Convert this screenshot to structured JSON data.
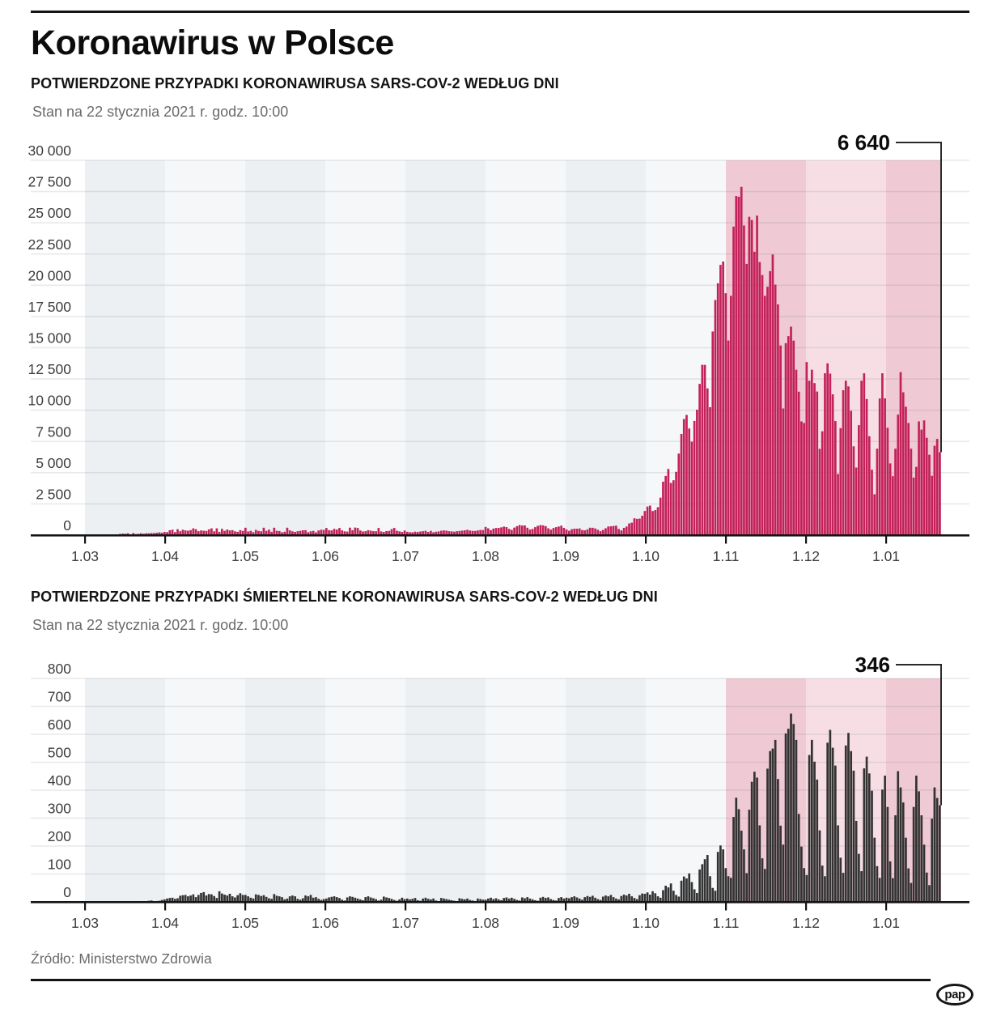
{
  "header": {
    "title": "Koronawirus w Polsce"
  },
  "footer": {
    "source": "Źródło: Ministerstwo Zdrowia",
    "logo_text": "pap"
  },
  "colors": {
    "cases_bar": "#c32159",
    "deaths_bar": "#333333",
    "band_gray": "#edf0f3",
    "band_light": "#f6f7f9",
    "band_pink_dark": "#efc9d4",
    "band_pink_light": "#f7dee5",
    "gridline": "rgba(120,132,144,0.18)",
    "axis": "#141414",
    "annotation_line": "#2a2a2a",
    "label_text": "#3d3d3d"
  },
  "chart_data": [
    {
      "type": "bar",
      "title": "POTWIERDZONE PRZYPADKI KORONAWIRUSA SARS-COV-2 WEDŁUG DNI",
      "subtitle": "Stan na 22 stycznia 2021 r. godz. 10:00",
      "granularity": "daily, 1.03.2020 - 22.01.2021",
      "annotation_last_value": "6 640",
      "ylim": [
        0,
        30000
      ],
      "y_tick_labels": [
        "30 000",
        "27 500",
        "25 000",
        "22 500",
        "20 000",
        "17 500",
        "15 000",
        "12 500",
        "10 000",
        "7 500",
        "5 000",
        "2 500",
        "0"
      ],
      "x_tick_labels": [
        "1.03",
        "1.04",
        "1.05",
        "1.06",
        "1.07",
        "1.08",
        "1.09",
        "1.10",
        "1.11",
        "1.12",
        "1.01"
      ],
      "highlight_from_label": "1.11",
      "bar_color": "#c32159",
      "legend_position": "none",
      "values": [
        1,
        1,
        5,
        6,
        22,
        16,
        39,
        46,
        37,
        43,
        61,
        49,
        68,
        103,
        125,
        119,
        152,
        68,
        168,
        91,
        111,
        152,
        115,
        155,
        150,
        168,
        170,
        193,
        224,
        196,
        256,
        243,
        392,
        437,
        244,
        475,
        311,
        435,
        380,
        357,
        401,
        545,
        475,
        318,
        380,
        354,
        336,
        461,
        545,
        306,
        545,
        263,
        504,
        342,
        452,
        381,
        401,
        306,
        263,
        399,
        342,
        593,
        295,
        345,
        235,
        425,
        340,
        307,
        595,
        345,
        442,
        270,
        595,
        350,
        330,
        225,
        272,
        595,
        383,
        305,
        259,
        315,
        344,
        388,
        399,
        235,
        305,
        340,
        225,
        371,
        435,
        416,
        575,
        399,
        380,
        506,
        450,
        576,
        379,
        305,
        283,
        599,
        396,
        607,
        576,
        375,
        295,
        316,
        397,
        360,
        319,
        314,
        576,
        295,
        256,
        325,
        340,
        480,
        576,
        355,
        305,
        260,
        371,
        266,
        239,
        231,
        279,
        257,
        293,
        314,
        349,
        257,
        344,
        234,
        277,
        295,
        353,
        380,
        360,
        316,
        300,
        279,
        316,
        336,
        361,
        389,
        426,
        370,
        341,
        335,
        377,
        415,
        409,
        658,
        548,
        399,
        526,
        572,
        580,
        624,
        686,
        645,
        500,
        420,
        602,
        718,
        809,
        769,
        776,
        595,
        449,
        497,
        640,
        749,
        803,
        786,
        719,
        551,
        441,
        570,
        641,
        691,
        758,
        583,
        455,
        350,
        475,
        519,
        515,
        538,
        410,
        385,
        463,
        594,
        590,
        534,
        432,
        316,
        419,
        554,
        690,
        711,
        736,
        758,
        497,
        377,
        582,
        691,
        936,
        1002,
        1350,
        1306,
        1326,
        1552,
        1934,
        2292,
        2367,
        1931,
        2006,
        2236,
        3003,
        4280,
        4739,
        5300,
        4178,
        4394,
        5068,
        6526,
        8099,
        9291,
        9622,
        8536,
        7482,
        9143,
        10040,
        12107,
        13632,
        13628,
        11742,
        10241,
        16300,
        18820,
        20156,
        21629,
        21897,
        19364,
        15578,
        19152,
        24692,
        27143,
        27086,
        27875,
        24785,
        21713,
        25484,
        25221,
        22683,
        25571,
        21854,
        20816,
        19152,
        19883,
        21130,
        22464,
        20051,
        18467,
        15178,
        10139,
        15362,
        15932,
        16687,
        15571,
        13240,
        11483,
        9105,
        8977,
        13855,
        12361,
        13239,
        12168,
        11497,
        6907,
        8312,
        12955,
        13749,
        12930,
        11267,
        9130,
        4896,
        8562,
        11599,
        12361,
        11903,
        9956,
        7109,
        5411,
        8805,
        12361,
        12955,
        10896,
        7914,
        5239,
        3271,
        6922,
        10936,
        12955,
        10947,
        8594,
        5742,
        4716,
        6919,
        9650,
        13045,
        11435,
        10278,
        8977,
        6919,
        4604,
        5466,
        9105,
        8449,
        9185,
        7795,
        6436,
        4748,
        7152,
        7705,
        6640
      ]
    },
    {
      "type": "bar",
      "title": "POTWIERDZONE PRZYPADKI ŚMIERTELNE KORONAWIRUSA SARS-COV-2 WEDŁUG DNI",
      "subtitle": "Stan na 22 stycznia 2021 r. godz. 10:00",
      "granularity": "daily, 1.03.2020 - 22.01.2021",
      "annotation_last_value": "346",
      "ylim": [
        0,
        800
      ],
      "y_tick_labels": [
        "800",
        "700",
        "600",
        "500",
        "400",
        "300",
        "200",
        "100",
        "0"
      ],
      "x_tick_labels": [
        "1.03",
        "1.04",
        "1.05",
        "1.06",
        "1.07",
        "1.08",
        "1.09",
        "1.10",
        "1.11",
        "1.12",
        "1.01"
      ],
      "highlight_from_label": "1.11",
      "bar_color": "#333333",
      "legend_position": "none",
      "values": [
        0,
        0,
        0,
        0,
        0,
        0,
        0,
        0,
        0,
        0,
        0,
        1,
        2,
        1,
        1,
        1,
        0,
        1,
        2,
        2,
        3,
        2,
        1,
        2,
        4,
        5,
        2,
        3,
        4,
        7,
        9,
        12,
        14,
        15,
        11,
        13,
        22,
        24,
        25,
        20,
        23,
        27,
        17,
        25,
        32,
        35,
        23,
        28,
        27,
        21,
        14,
        38,
        30,
        26,
        23,
        29,
        20,
        16,
        24,
        31,
        25,
        25,
        20,
        15,
        12,
        27,
        25,
        21,
        24,
        18,
        13,
        11,
        28,
        22,
        20,
        17,
        9,
        12,
        20,
        23,
        20,
        11,
        8,
        13,
        23,
        20,
        25,
        15,
        17,
        11,
        7,
        10,
        12,
        16,
        18,
        20,
        17,
        14,
        8,
        5,
        16,
        20,
        18,
        15,
        12,
        9,
        6,
        17,
        20,
        16,
        13,
        10,
        5,
        8,
        19,
        16,
        14,
        11,
        7,
        4,
        9,
        15,
        10,
        12,
        9,
        11,
        14,
        6,
        4,
        12,
        15,
        11,
        9,
        12,
        5,
        3,
        14,
        12,
        10,
        8,
        6,
        4,
        2,
        13,
        11,
        9,
        12,
        7,
        5,
        3,
        12,
        10,
        8,
        8,
        12,
        15,
        10,
        13,
        9,
        6,
        14,
        16,
        12,
        15,
        11,
        7,
        5,
        16,
        13,
        17,
        12,
        9,
        6,
        4,
        15,
        18,
        14,
        16,
        10,
        7,
        5,
        14,
        17,
        12,
        15,
        13,
        17,
        20,
        16,
        12,
        8,
        17,
        21,
        18,
        22,
        15,
        10,
        7,
        19,
        23,
        20,
        25,
        17,
        12,
        9,
        21,
        26,
        23,
        29,
        20,
        14,
        10,
        24,
        30,
        29,
        34,
        26,
        38,
        31,
        20,
        15,
        42,
        58,
        52,
        66,
        40,
        25,
        19,
        76,
        91,
        84,
        102,
        71,
        45,
        32,
        116,
        135,
        153,
        168,
        92,
        50,
        40,
        179,
        202,
        188,
        121,
        92,
        86,
        304,
        373,
        332,
        255,
        188,
        103,
        330,
        430,
        466,
        445,
        274,
        156,
        118,
        477,
        540,
        549,
        580,
        440,
        273,
        205,
        603,
        620,
        674,
        637,
        580,
        315,
        198,
        121,
        96,
        526,
        580,
        502,
        438,
        256,
        130,
        92,
        570,
        616,
        552,
        488,
        274,
        158,
        104,
        560,
        605,
        540,
        470,
        290,
        172,
        110,
        478,
        520,
        460,
        398,
        230,
        128,
        86,
        402,
        452,
        340,
        145,
        85,
        310,
        468,
        410,
        356,
        230,
        120,
        68,
        340,
        452,
        396,
        310,
        205,
        105,
        60,
        298,
        410,
        372,
        346
      ]
    }
  ]
}
